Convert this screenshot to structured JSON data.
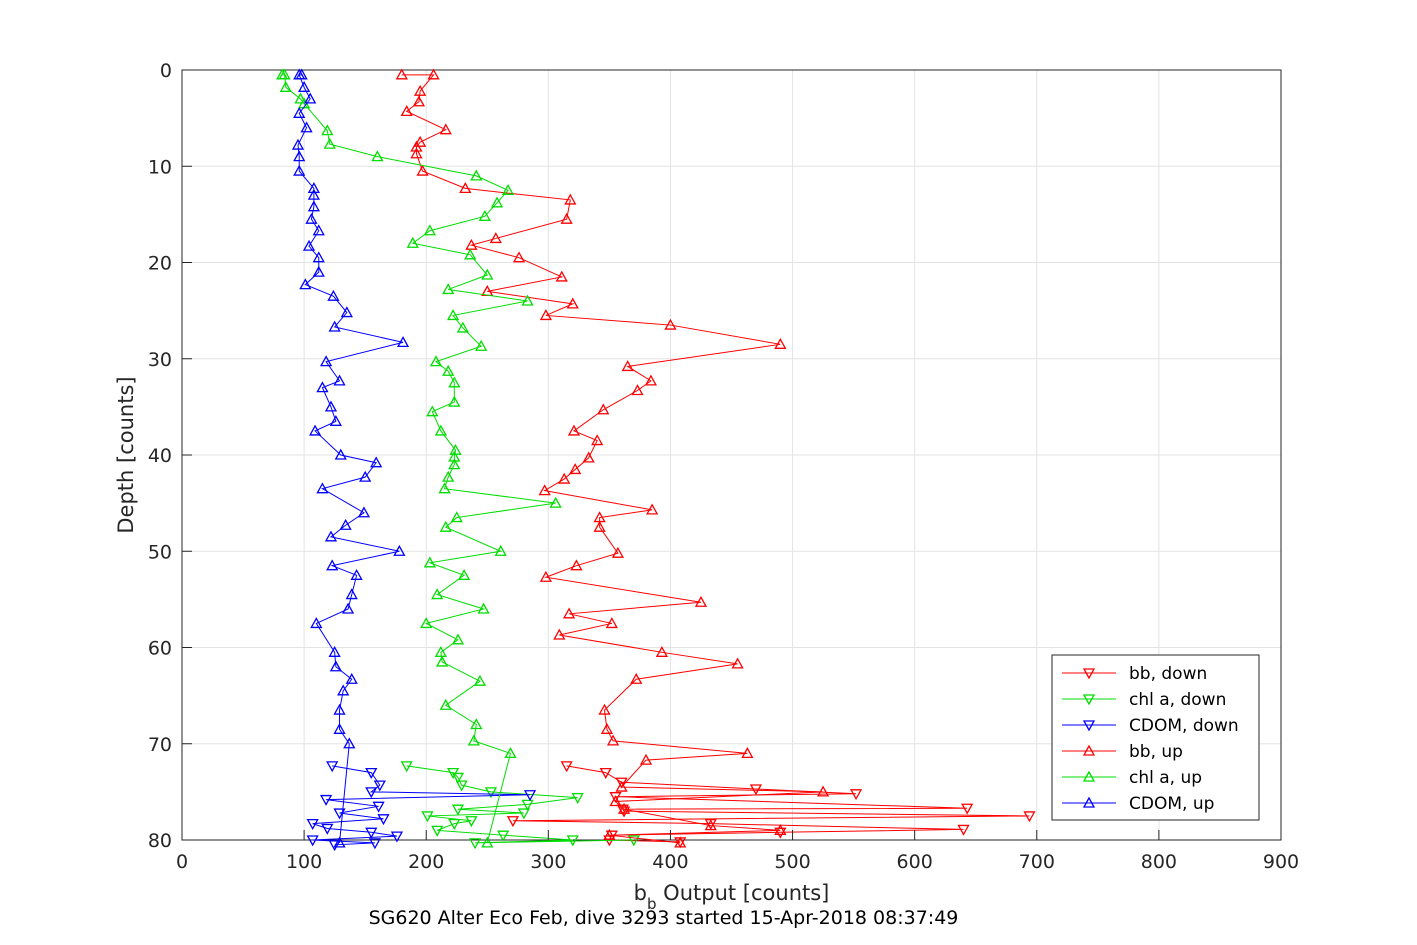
{
  "chart_data": {
    "type": "line",
    "xlabel": "b",
    "xlabel_sub": "b",
    "xlabel_rest": " Output [counts]",
    "ylabel": "Depth [counts]",
    "caption": "SG620 Alter Eco Feb, dive 3293 started 15-Apr-2018 08:37:49",
    "xlim": [
      0,
      900
    ],
    "ylim": [
      0,
      80
    ],
    "y_reversed": true,
    "xticks": [
      0,
      100,
      200,
      300,
      400,
      500,
      600,
      700,
      800,
      900
    ],
    "yticks": [
      0,
      10,
      20,
      30,
      40,
      50,
      60,
      70,
      80
    ],
    "grid": true,
    "legend_position": "bottom-right",
    "series": [
      {
        "name": "bb, down",
        "color": "#ff0000",
        "marker": "triangle-down",
        "points": [
          [
            315,
            72.3
          ],
          [
            347,
            73
          ],
          [
            360,
            74
          ],
          [
            470,
            74.7
          ],
          [
            552,
            75.2
          ],
          [
            355,
            75.5
          ],
          [
            643,
            76.7
          ],
          [
            361,
            76.8
          ],
          [
            362,
            77
          ],
          [
            694,
            77.5
          ],
          [
            271,
            78
          ],
          [
            433,
            78.3
          ],
          [
            640,
            78.9
          ],
          [
            490,
            79.2
          ],
          [
            352,
            79.5
          ],
          [
            350,
            80
          ],
          [
            408,
            80.2
          ]
        ]
      },
      {
        "name": "chl a, down",
        "color": "#00dd00",
        "marker": "triangle-down",
        "points": [
          [
            184,
            72.3
          ],
          [
            222,
            73
          ],
          [
            226,
            73.5
          ],
          [
            229,
            74.3
          ],
          [
            253,
            75
          ],
          [
            324,
            75.6
          ],
          [
            283,
            76.3
          ],
          [
            226,
            76.8
          ],
          [
            280,
            77.2
          ],
          [
            201,
            77.5
          ],
          [
            237,
            78
          ],
          [
            223,
            78.3
          ],
          [
            209,
            79
          ],
          [
            263,
            79.5
          ],
          [
            320,
            80
          ],
          [
            240,
            80.3
          ],
          [
            370,
            80
          ]
        ]
      },
      {
        "name": "CDOM, down",
        "color": "#0000ff",
        "marker": "triangle-down",
        "points": [
          [
            123,
            72.3
          ],
          [
            155,
            73
          ],
          [
            162,
            74.3
          ],
          [
            155,
            75
          ],
          [
            285,
            75.3
          ],
          [
            118,
            75.8
          ],
          [
            161,
            76.5
          ],
          [
            129,
            77.2
          ],
          [
            165,
            77.8
          ],
          [
            107,
            78.3
          ],
          [
            119,
            78.8
          ],
          [
            155,
            79.2
          ],
          [
            176,
            79.6
          ],
          [
            107,
            80
          ],
          [
            158,
            80.3
          ],
          [
            125,
            80.5
          ]
        ]
      },
      {
        "name": "bb, up",
        "color": "#ff0000",
        "marker": "triangle-up",
        "points": [
          [
            408,
            80.3
          ],
          [
            350,
            79.5
          ],
          [
            490,
            79
          ],
          [
            433,
            78.5
          ],
          [
            362,
            76.8
          ],
          [
            355,
            76
          ],
          [
            525,
            75
          ],
          [
            360,
            74.5
          ],
          [
            380,
            71.7
          ],
          [
            463,
            71
          ],
          [
            353,
            69.7
          ],
          [
            348,
            68.5
          ],
          [
            346,
            66.5
          ],
          [
            372,
            63.3
          ],
          [
            455,
            61.7
          ],
          [
            393,
            60.5
          ],
          [
            309,
            58.7
          ],
          [
            352,
            57.5
          ],
          [
            317,
            56.5
          ],
          [
            425,
            55.3
          ],
          [
            298,
            52.7
          ],
          [
            323,
            51.5
          ],
          [
            357,
            50.2
          ],
          [
            342,
            47.5
          ],
          [
            342,
            46.5
          ],
          [
            385,
            45.7
          ],
          [
            297,
            43.7
          ],
          [
            313,
            42.5
          ],
          [
            322,
            41.5
          ],
          [
            333,
            40.3
          ],
          [
            340,
            38.5
          ],
          [
            321,
            37.5
          ],
          [
            345,
            35.3
          ],
          [
            373,
            33.3
          ],
          [
            384,
            32.3
          ],
          [
            365,
            30.8
          ],
          [
            490,
            28.5
          ],
          [
            400,
            26.5
          ],
          [
            298,
            25.5
          ],
          [
            320,
            24.3
          ],
          [
            250,
            23
          ],
          [
            311,
            21.5
          ],
          [
            276,
            19.5
          ],
          [
            237,
            18.2
          ],
          [
            257,
            17.5
          ],
          [
            315,
            15.5
          ],
          [
            318,
            13.5
          ],
          [
            232,
            12.3
          ],
          [
            197,
            10.5
          ],
          [
            192,
            8.7
          ],
          [
            192,
            8
          ],
          [
            195,
            7.5
          ],
          [
            216,
            6.2
          ],
          [
            184,
            4.3
          ],
          [
            194,
            3.3
          ],
          [
            195,
            2.2
          ],
          [
            206,
            0.5
          ],
          [
            180,
            0.5
          ]
        ]
      },
      {
        "name": "chl a, up",
        "color": "#00dd00",
        "marker": "triangle-up",
        "points": [
          [
            250,
            80.3
          ],
          [
            269,
            71
          ],
          [
            239,
            69.7
          ],
          [
            241,
            68
          ],
          [
            216,
            66
          ],
          [
            244,
            63.5
          ],
          [
            213,
            61.5
          ],
          [
            212,
            60.5
          ],
          [
            226,
            59.2
          ],
          [
            200,
            57.5
          ],
          [
            247,
            56
          ],
          [
            209,
            54.5
          ],
          [
            231,
            52.5
          ],
          [
            203,
            51.2
          ],
          [
            261,
            50
          ],
          [
            216,
            47.5
          ],
          [
            225,
            46.5
          ],
          [
            306,
            45
          ],
          [
            215,
            43.5
          ],
          [
            218,
            42.3
          ],
          [
            223,
            41
          ],
          [
            223,
            40.2
          ],
          [
            224,
            39.5
          ],
          [
            212,
            37.5
          ],
          [
            205,
            35.5
          ],
          [
            223,
            34.5
          ],
          [
            223,
            32.5
          ],
          [
            218,
            31.3
          ],
          [
            208,
            30.3
          ],
          [
            245,
            28.7
          ],
          [
            230,
            26.8
          ],
          [
            222,
            25.5
          ],
          [
            283,
            24
          ],
          [
            218,
            22.8
          ],
          [
            250,
            21.3
          ],
          [
            236,
            19.2
          ],
          [
            189,
            18
          ],
          [
            203,
            16.7
          ],
          [
            248,
            15.2
          ],
          [
            258,
            13.8
          ],
          [
            267,
            12.5
          ],
          [
            241,
            11
          ],
          [
            160,
            9
          ],
          [
            121,
            7.7
          ],
          [
            119,
            6.3
          ],
          [
            100,
            3.5
          ],
          [
            97,
            3
          ],
          [
            85,
            1.8
          ],
          [
            84,
            0.5
          ],
          [
            82,
            0.5
          ]
        ]
      },
      {
        "name": "CDOM, up",
        "color": "#0000ff",
        "marker": "triangle-up",
        "points": [
          [
            129,
            80.3
          ],
          [
            137,
            70
          ],
          [
            129,
            68.5
          ],
          [
            129,
            66.5
          ],
          [
            132,
            64.5
          ],
          [
            139,
            63.3
          ],
          [
            126,
            62
          ],
          [
            125,
            60.5
          ],
          [
            110,
            57.5
          ],
          [
            136,
            56
          ],
          [
            139,
            54.5
          ],
          [
            143,
            52.5
          ],
          [
            123,
            51.5
          ],
          [
            178,
            50
          ],
          [
            122,
            48.5
          ],
          [
            134,
            47.3
          ],
          [
            149,
            46
          ],
          [
            115,
            43.5
          ],
          [
            150,
            42.3
          ],
          [
            159,
            40.8
          ],
          [
            130,
            40
          ],
          [
            109,
            37.5
          ],
          [
            126,
            36.5
          ],
          [
            122,
            35
          ],
          [
            115,
            33
          ],
          [
            129,
            32.3
          ],
          [
            118,
            30.3
          ],
          [
            181,
            28.3
          ],
          [
            125,
            26.7
          ],
          [
            135,
            25.2
          ],
          [
            124,
            23.5
          ],
          [
            101,
            22.3
          ],
          [
            112,
            21
          ],
          [
            112,
            19.5
          ],
          [
            104,
            18.3
          ],
          [
            112,
            16.7
          ],
          [
            106,
            15.5
          ],
          [
            108,
            14.2
          ],
          [
            108,
            13
          ],
          [
            108,
            12.3
          ],
          [
            96,
            10.5
          ],
          [
            96,
            9
          ],
          [
            95,
            7.8
          ],
          [
            102,
            6
          ],
          [
            96,
            4.5
          ],
          [
            105,
            3
          ],
          [
            100,
            1.8
          ],
          [
            96,
            0.5
          ],
          [
            98,
            0.5
          ]
        ]
      }
    ]
  }
}
